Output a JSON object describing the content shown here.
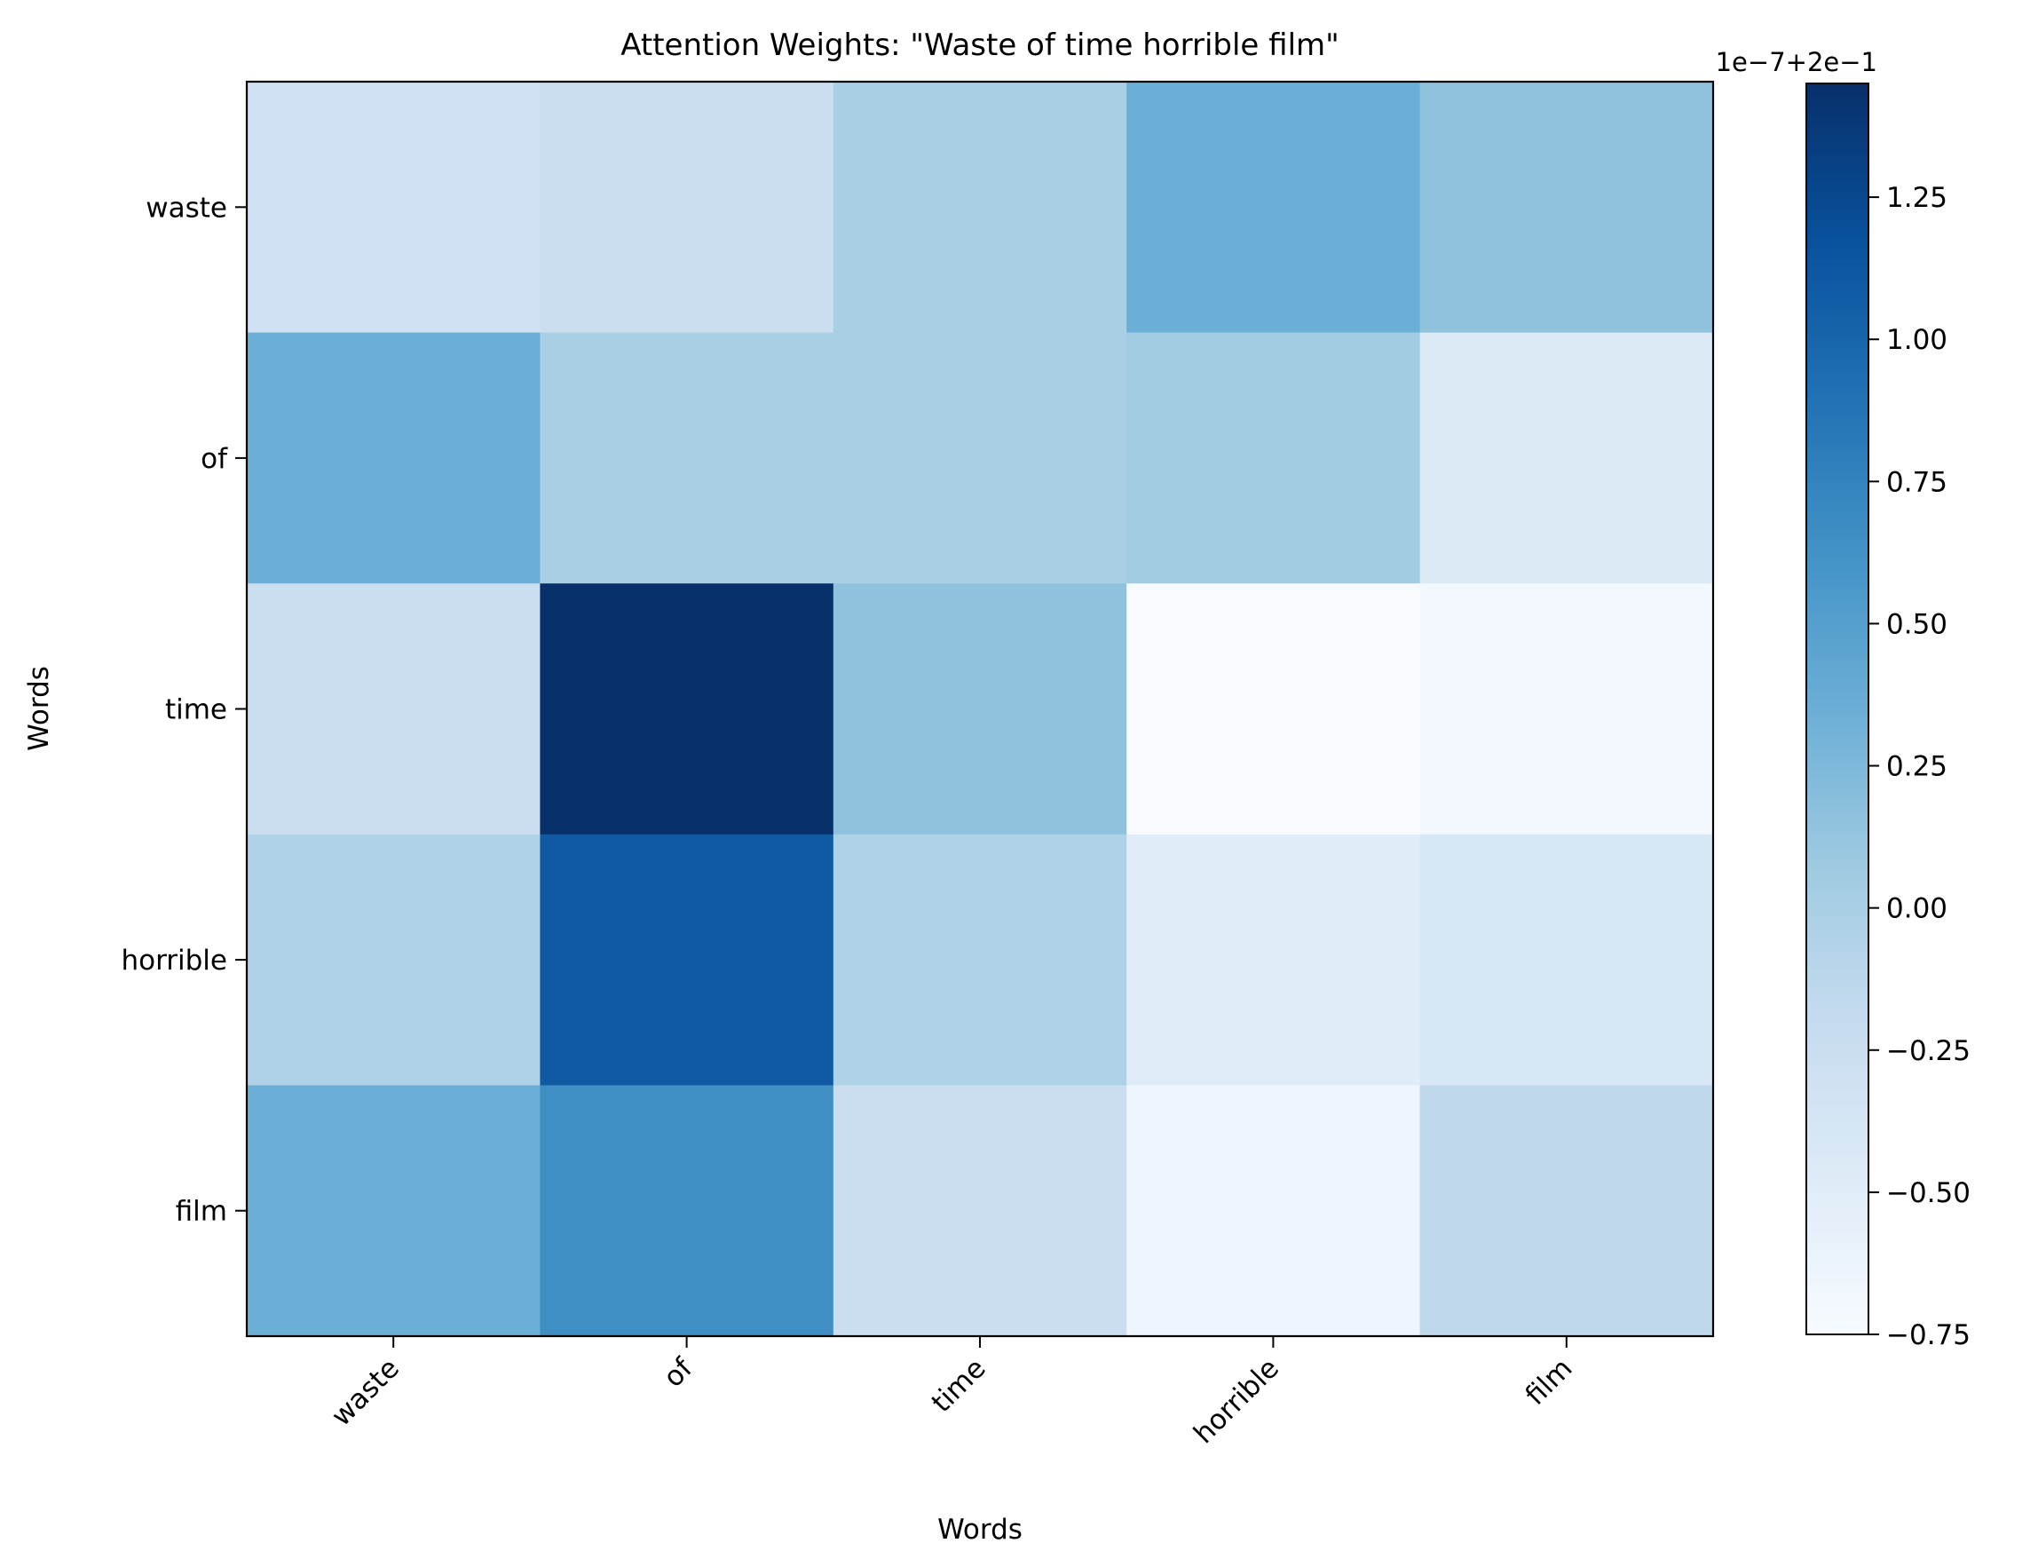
{
  "chart_data": {
    "type": "heatmap",
    "title": "Attention Weights: \"Waste of time horrible film\"",
    "xlabel": "Words",
    "ylabel": "Words",
    "x_categories": [
      "waste",
      "of",
      "time",
      "horrible",
      "film"
    ],
    "y_categories": [
      "waste",
      "of",
      "time",
      "horrible",
      "film"
    ],
    "values": [
      [
        -0.3,
        -0.25,
        0.0,
        0.35,
        0.15
      ],
      [
        0.35,
        0.0,
        0.0,
        0.05,
        -0.45
      ],
      [
        -0.25,
        1.45,
        0.15,
        -0.75,
        -0.7
      ],
      [
        -0.05,
        1.1,
        -0.05,
        -0.5,
        -0.4
      ],
      [
        0.35,
        0.65,
        -0.25,
        -0.65,
        -0.15
      ]
    ],
    "colormap": "Blues",
    "colorbar": {
      "min": -0.75,
      "max": 1.45,
      "ticks": [
        -0.75,
        -0.5,
        -0.25,
        0.0,
        0.25,
        0.5,
        0.75,
        1.0,
        1.25
      ],
      "tick_labels": [
        "−0.75",
        "−0.50",
        "−0.25",
        "0.00",
        "0.25",
        "0.50",
        "0.75",
        "1.00",
        "1.25"
      ],
      "offset_text": "1e−7+2e−1"
    }
  }
}
